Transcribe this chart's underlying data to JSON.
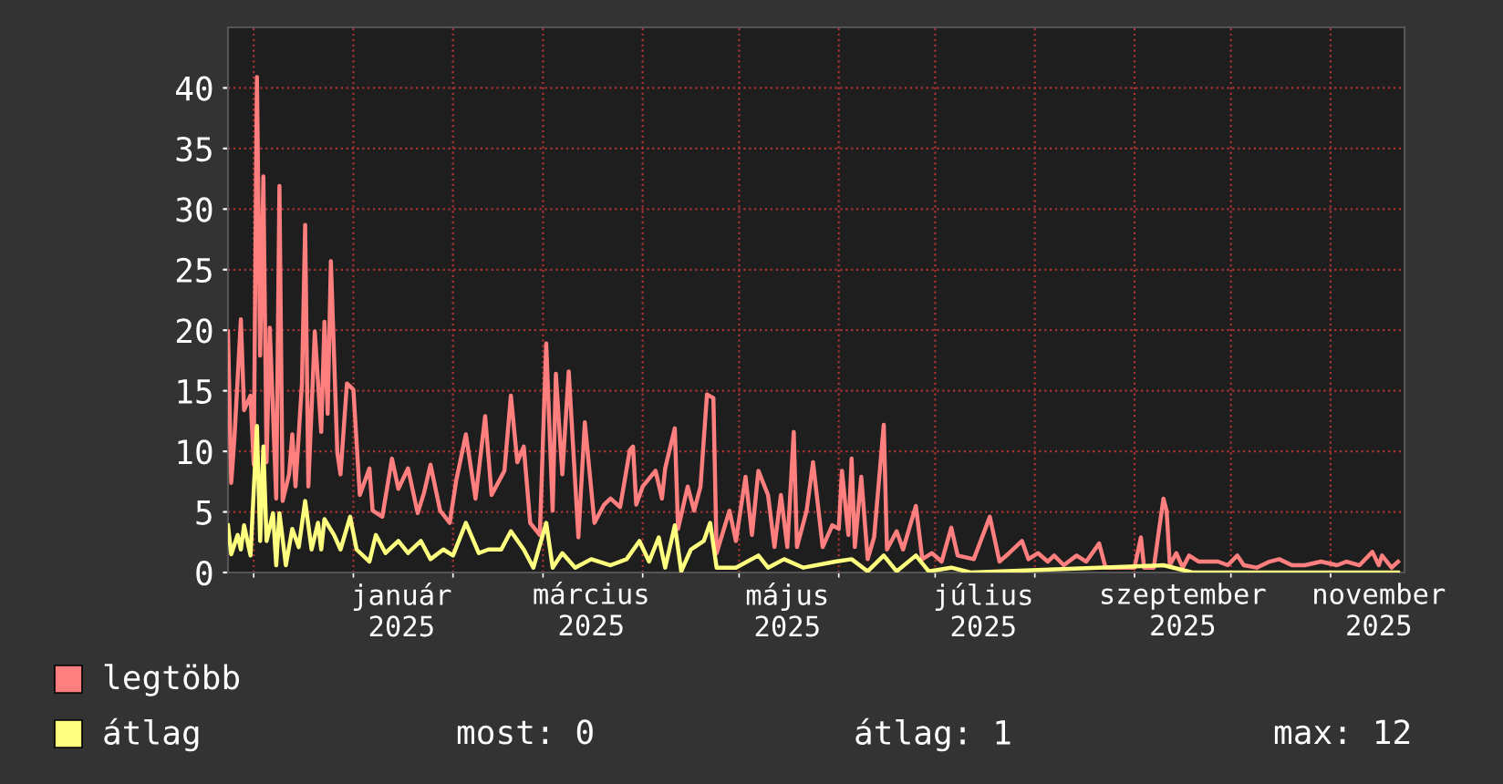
{
  "chart_data": {
    "type": "line",
    "xlim": [
      "2024-11-23",
      "2025-11-24"
    ],
    "ylim": [
      0,
      45
    ],
    "yticks": [
      0,
      5,
      10,
      15,
      20,
      25,
      30,
      35,
      40
    ],
    "xticks": [
      {
        "value": "2024-12-01",
        "label": null
      },
      {
        "value": "2025-01-01",
        "label": null
      },
      {
        "value": "2025-01-16",
        "label": "január 2025"
      },
      {
        "value": "2025-02-01",
        "label": null
      },
      {
        "value": "2025-03-01",
        "label": null
      },
      {
        "value": "2025-03-16",
        "label": "március 2025"
      },
      {
        "value": "2025-04-01",
        "label": null
      },
      {
        "value": "2025-05-01",
        "label": null
      },
      {
        "value": "2025-05-16",
        "label": "május 2025"
      },
      {
        "value": "2025-06-01",
        "label": null
      },
      {
        "value": "2025-07-01",
        "label": null
      },
      {
        "value": "2025-07-16",
        "label": "július 2025"
      },
      {
        "value": "2025-08-01",
        "label": null
      },
      {
        "value": "2025-09-01",
        "label": null
      },
      {
        "value": "2025-09-16",
        "label": "szeptember 2025"
      },
      {
        "value": "2025-10-01",
        "label": null
      },
      {
        "value": "2025-11-01",
        "label": null
      },
      {
        "value": "2025-11-16",
        "label": "november 2025"
      }
    ],
    "grid": true,
    "legend": "bottom",
    "line_style": "solid",
    "marker": "none",
    "annotations": [
      "most: 0",
      "átlag: 1",
      "max: 12"
    ],
    "series": [
      {
        "name": "legtöbb",
        "color": "#ff7f7f",
        "x": [
          "2024-11-23",
          "2024-11-24",
          "2024-11-25",
          "2024-11-27",
          "2024-11-28",
          "2024-11-30",
          "2024-12-01",
          "2024-12-02",
          "2024-12-03",
          "2024-12-04",
          "2024-12-05",
          "2024-12-06",
          "2024-12-08",
          "2024-12-09",
          "2024-12-10",
          "2024-12-12",
          "2024-12-13",
          "2024-12-14",
          "2024-12-16",
          "2024-12-17",
          "2024-12-18",
          "2024-12-20",
          "2024-12-22",
          "2024-12-23",
          "2024-12-24",
          "2024-12-25",
          "2024-12-27",
          "2024-12-28",
          "2024-12-30",
          "2025-01-01",
          "2025-01-03",
          "2025-01-06",
          "2025-01-07",
          "2025-01-10",
          "2025-01-13",
          "2025-01-15",
          "2025-01-18",
          "2025-01-21",
          "2025-01-23",
          "2025-01-25",
          "2025-01-28",
          "2025-01-31",
          "2025-02-02",
          "2025-02-05",
          "2025-02-08",
          "2025-02-11",
          "2025-02-13",
          "2025-02-17",
          "2025-02-19",
          "2025-02-21",
          "2025-02-23",
          "2025-02-25",
          "2025-02-28",
          "2025-03-02",
          "2025-03-04",
          "2025-03-05",
          "2025-03-07",
          "2025-03-09",
          "2025-03-12",
          "2025-03-14",
          "2025-03-17",
          "2025-03-20",
          "2025-03-22",
          "2025-03-25",
          "2025-03-28",
          "2025-03-29",
          "2025-03-30",
          "2025-04-01",
          "2025-04-05",
          "2025-04-07",
          "2025-04-08",
          "2025-04-11",
          "2025-04-12",
          "2025-04-15",
          "2025-04-17",
          "2025-04-19",
          "2025-04-21",
          "2025-04-23",
          "2025-04-24",
          "2025-04-28",
          "2025-04-30",
          "2025-05-03",
          "2025-05-05",
          "2025-05-07",
          "2025-05-10",
          "2025-05-12",
          "2025-05-14",
          "2025-05-16",
          "2025-05-18",
          "2025-05-19",
          "2025-05-22",
          "2025-05-24",
          "2025-05-27",
          "2025-05-30",
          "2025-06-01",
          "2025-06-02",
          "2025-06-04",
          "2025-06-05",
          "2025-06-06",
          "2025-06-08",
          "2025-06-10",
          "2025-06-12",
          "2025-06-15",
          "2025-06-16",
          "2025-06-19",
          "2025-06-21",
          "2025-06-25",
          "2025-06-27",
          "2025-06-30",
          "2025-07-03",
          "2025-07-06",
          "2025-07-08",
          "2025-07-13",
          "2025-07-18",
          "2025-07-21",
          "2025-07-24",
          "2025-07-28",
          "2025-07-30",
          "2025-08-02",
          "2025-08-05",
          "2025-08-07",
          "2025-08-10",
          "2025-08-14",
          "2025-08-17",
          "2025-08-21",
          "2025-08-23",
          "2025-08-27",
          "2025-09-01",
          "2025-09-03",
          "2025-09-04",
          "2025-09-07",
          "2025-09-10",
          "2025-09-11",
          "2025-09-12",
          "2025-09-14",
          "2025-09-16",
          "2025-09-18",
          "2025-09-21",
          "2025-09-27",
          "2025-09-30",
          "2025-10-03",
          "2025-10-05",
          "2025-10-09",
          "2025-10-13",
          "2025-10-16",
          "2025-10-20",
          "2025-10-24",
          "2025-10-29",
          "2025-11-03",
          "2025-11-06",
          "2025-11-10",
          "2025-11-14",
          "2025-11-16",
          "2025-11-17",
          "2025-11-20",
          "2025-11-22"
        ],
        "values": [
          19.9,
          7.4,
          11.1,
          20.9,
          13.4,
          14.6,
          8.9,
          40.9,
          17.9,
          32.7,
          9.1,
          20.2,
          6.1,
          31.9,
          5.9,
          8.1,
          11.4,
          7.1,
          15.6,
          28.7,
          7.1,
          19.9,
          11.6,
          20.7,
          13.1,
          25.7,
          9.9,
          8.1,
          15.6,
          15.1,
          6.4,
          8.6,
          5.1,
          4.6,
          9.4,
          6.9,
          8.6,
          4.9,
          6.6,
          8.9,
          5.1,
          4.1,
          7.6,
          11.4,
          6.1,
          12.9,
          6.4,
          8.4,
          14.6,
          9.1,
          10.4,
          4.1,
          3.1,
          18.9,
          5.1,
          16.4,
          8.1,
          16.6,
          2.9,
          12.4,
          4.1,
          5.6,
          6.1,
          5.4,
          10.1,
          10.4,
          5.6,
          7.1,
          8.4,
          6.1,
          8.6,
          11.9,
          3.6,
          7.1,
          5.1,
          7.1,
          14.7,
          14.4,
          1.6,
          5.1,
          2.6,
          7.9,
          3.1,
          8.4,
          6.4,
          2.1,
          6.4,
          2.1,
          11.6,
          2.1,
          5.1,
          9.1,
          2.1,
          3.9,
          3.6,
          8.4,
          3.1,
          9.4,
          2.1,
          7.9,
          1.1,
          2.9,
          12.2,
          1.9,
          3.4,
          1.9,
          5.5,
          1.1,
          1.6,
          0.9,
          3.7,
          1.4,
          1.1,
          4.6,
          0.9,
          1.6,
          2.6,
          1.1,
          1.6,
          0.9,
          1.4,
          0.6,
          1.4,
          0.9,
          2.4,
          0.4,
          0.4,
          0.4,
          2.9,
          0.4,
          0.4,
          6.1,
          5.1,
          0.6,
          1.6,
          0.4,
          1.4,
          0.9,
          0.9,
          0.6,
          1.4,
          0.6,
          0.4,
          0.9,
          1.1,
          0.6,
          0.6,
          0.9,
          0.6,
          0.9,
          0.6,
          1.7,
          0.6,
          1.4,
          0.4,
          0.9
        ]
      },
      {
        "name": "átlag",
        "color": "#ffff7f",
        "x": [
          "2024-11-23",
          "2024-11-24",
          "2024-11-26",
          "2024-11-27",
          "2024-11-28",
          "2024-11-30",
          "2024-12-02",
          "2024-12-03",
          "2024-12-04",
          "2024-12-05",
          "2024-12-07",
          "2024-12-08",
          "2024-12-09",
          "2024-12-11",
          "2024-12-13",
          "2024-12-15",
          "2024-12-17",
          "2024-12-19",
          "2024-12-21",
          "2024-12-22",
          "2024-12-23",
          "2024-12-26",
          "2024-12-28",
          "2024-12-31",
          "2025-01-02",
          "2025-01-06",
          "2025-01-08",
          "2025-01-11",
          "2025-01-15",
          "2025-01-18",
          "2025-01-22",
          "2025-01-25",
          "2025-01-29",
          "2025-02-01",
          "2025-02-05",
          "2025-02-09",
          "2025-02-12",
          "2025-02-16",
          "2025-02-19",
          "2025-02-23",
          "2025-02-26",
          "2025-03-02",
          "2025-03-04",
          "2025-03-07",
          "2025-03-11",
          "2025-03-16",
          "2025-03-22",
          "2025-03-27",
          "2025-03-31",
          "2025-04-03",
          "2025-04-06",
          "2025-04-08",
          "2025-04-11",
          "2025-04-13",
          "2025-04-16",
          "2025-04-20",
          "2025-04-22",
          "2025-04-24",
          "2025-04-30",
          "2025-05-07",
          "2025-05-10",
          "2025-05-15",
          "2025-05-21",
          "2025-05-31",
          "2025-06-05",
          "2025-06-10",
          "2025-06-15",
          "2025-06-19",
          "2025-06-25",
          "2025-06-29",
          "2025-07-06",
          "2025-07-12",
          "2025-09-10",
          "2025-09-19",
          "2025-11-22"
        ],
        "values": [
          3.9,
          1.5,
          3.1,
          1.9,
          3.9,
          1.4,
          12.1,
          2.6,
          10.4,
          2.6,
          4.9,
          0.6,
          4.9,
          0.6,
          3.6,
          2.1,
          5.9,
          1.9,
          4.1,
          1.9,
          4.4,
          3.1,
          1.9,
          4.6,
          1.9,
          0.9,
          3.1,
          1.6,
          2.6,
          1.6,
          2.6,
          1.1,
          1.9,
          1.4,
          4.1,
          1.6,
          1.9,
          1.9,
          3.4,
          1.9,
          0.4,
          4.1,
          0.4,
          1.6,
          0.4,
          1.1,
          0.6,
          1.1,
          2.6,
          0.9,
          2.9,
          0.4,
          3.9,
          0.1,
          1.9,
          2.6,
          4.1,
          0.4,
          0.4,
          1.4,
          0.4,
          1.1,
          0.4,
          0.9,
          1.1,
          0.1,
          1.4,
          0.1,
          1.4,
          0.1,
          0.4,
          0,
          0.6,
          0,
          0
        ]
      }
    ]
  }
}
